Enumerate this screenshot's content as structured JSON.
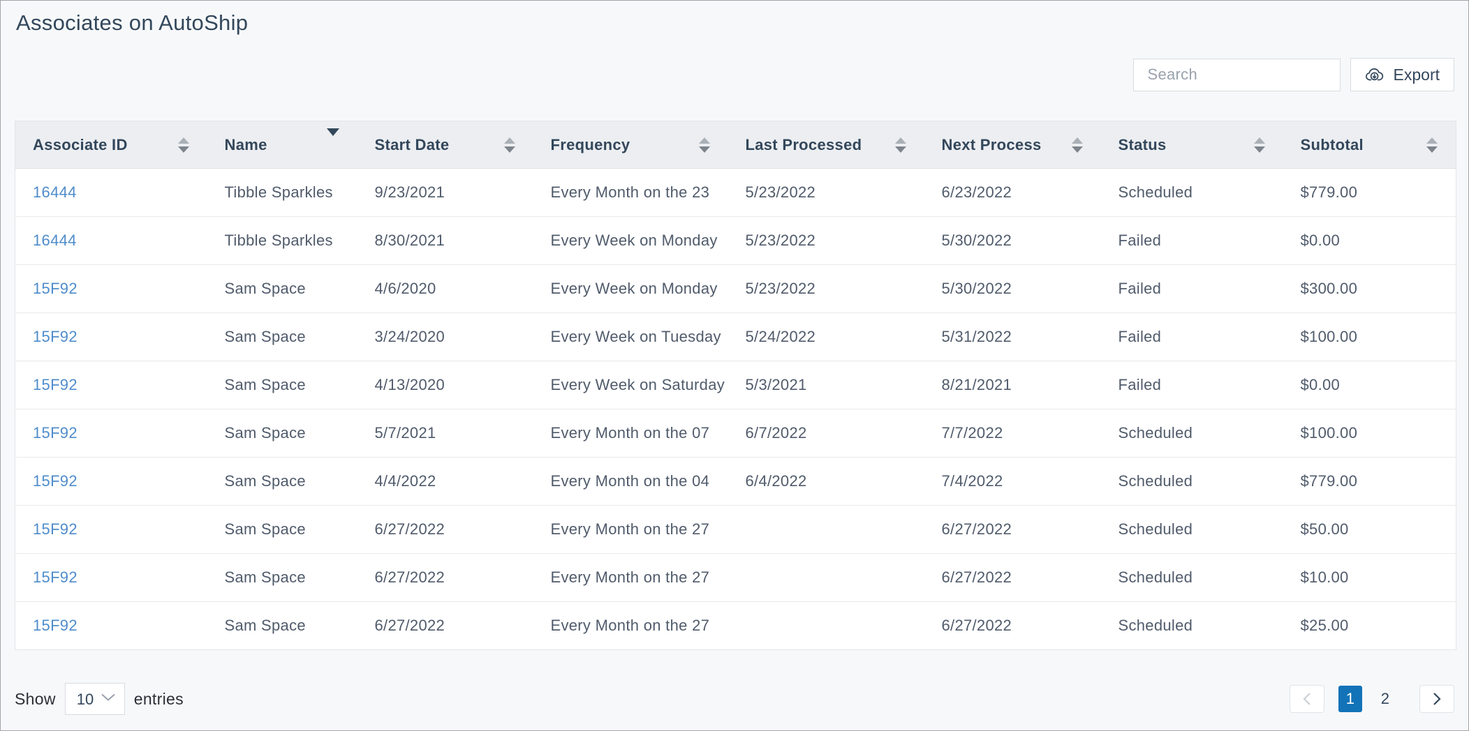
{
  "page": {
    "title": "Associates on AutoShip"
  },
  "toolbar": {
    "search_placeholder": "Search",
    "export_label": "Export"
  },
  "table": {
    "columns": [
      {
        "key": "associate_id",
        "label": "Associate ID",
        "sort": "both"
      },
      {
        "key": "name",
        "label": "Name",
        "sort": "desc"
      },
      {
        "key": "start_date",
        "label": "Start Date",
        "sort": "both"
      },
      {
        "key": "frequency",
        "label": "Frequency",
        "sort": "both"
      },
      {
        "key": "last_processed",
        "label": "Last Processed",
        "sort": "both"
      },
      {
        "key": "next_process",
        "label": "Next Process",
        "sort": "both"
      },
      {
        "key": "status",
        "label": "Status",
        "sort": "both"
      },
      {
        "key": "subtotal",
        "label": "Subtotal",
        "sort": "both"
      }
    ],
    "rows": [
      {
        "associate_id": "16444",
        "name": "Tibble Sparkles",
        "start_date": "9/23/2021",
        "frequency": "Every Month on the 23",
        "last_processed": "5/23/2022",
        "next_process": "6/23/2022",
        "status": "Scheduled",
        "subtotal": "$779.00"
      },
      {
        "associate_id": "16444",
        "name": "Tibble Sparkles",
        "start_date": "8/30/2021",
        "frequency": "Every Week on Monday",
        "last_processed": "5/23/2022",
        "next_process": "5/30/2022",
        "status": "Failed",
        "subtotal": "$0.00"
      },
      {
        "associate_id": "15F92",
        "name": "Sam Space",
        "start_date": "4/6/2020",
        "frequency": "Every Week on Monday",
        "last_processed": "5/23/2022",
        "next_process": "5/30/2022",
        "status": "Failed",
        "subtotal": "$300.00"
      },
      {
        "associate_id": "15F92",
        "name": "Sam Space",
        "start_date": "3/24/2020",
        "frequency": "Every Week on Tuesday",
        "last_processed": "5/24/2022",
        "next_process": "5/31/2022",
        "status": "Failed",
        "subtotal": "$100.00"
      },
      {
        "associate_id": "15F92",
        "name": "Sam Space",
        "start_date": "4/13/2020",
        "frequency": "Every Week on Saturday",
        "last_processed": "5/3/2021",
        "next_process": "8/21/2021",
        "status": "Failed",
        "subtotal": "$0.00"
      },
      {
        "associate_id": "15F92",
        "name": "Sam Space",
        "start_date": "5/7/2021",
        "frequency": "Every Month on the 07",
        "last_processed": "6/7/2022",
        "next_process": "7/7/2022",
        "status": "Scheduled",
        "subtotal": "$100.00"
      },
      {
        "associate_id": "15F92",
        "name": "Sam Space",
        "start_date": "4/4/2022",
        "frequency": "Every Month on the 04",
        "last_processed": "6/4/2022",
        "next_process": "7/4/2022",
        "status": "Scheduled",
        "subtotal": "$779.00"
      },
      {
        "associate_id": "15F92",
        "name": "Sam Space",
        "start_date": "6/27/2022",
        "frequency": "Every Month on the 27",
        "last_processed": "",
        "next_process": "6/27/2022",
        "status": "Scheduled",
        "subtotal": "$50.00"
      },
      {
        "associate_id": "15F92",
        "name": "Sam Space",
        "start_date": "6/27/2022",
        "frequency": "Every Month on the 27",
        "last_processed": "",
        "next_process": "6/27/2022",
        "status": "Scheduled",
        "subtotal": "$10.00"
      },
      {
        "associate_id": "15F92",
        "name": "Sam Space",
        "start_date": "6/27/2022",
        "frequency": "Every Month on the 27",
        "last_processed": "",
        "next_process": "6/27/2022",
        "status": "Scheduled",
        "subtotal": "$25.00"
      }
    ]
  },
  "footer": {
    "show_label": "Show",
    "page_size": "10",
    "entries_label": "entries",
    "pages": [
      "1",
      "2"
    ],
    "active_page": "1"
  },
  "colors": {
    "accent_blue": "#1273b8",
    "link_blue": "#4e8ccb",
    "heading_navy": "#33475b",
    "header_row_bg": "#eceef1",
    "page_bg": "#f7f8fa"
  }
}
